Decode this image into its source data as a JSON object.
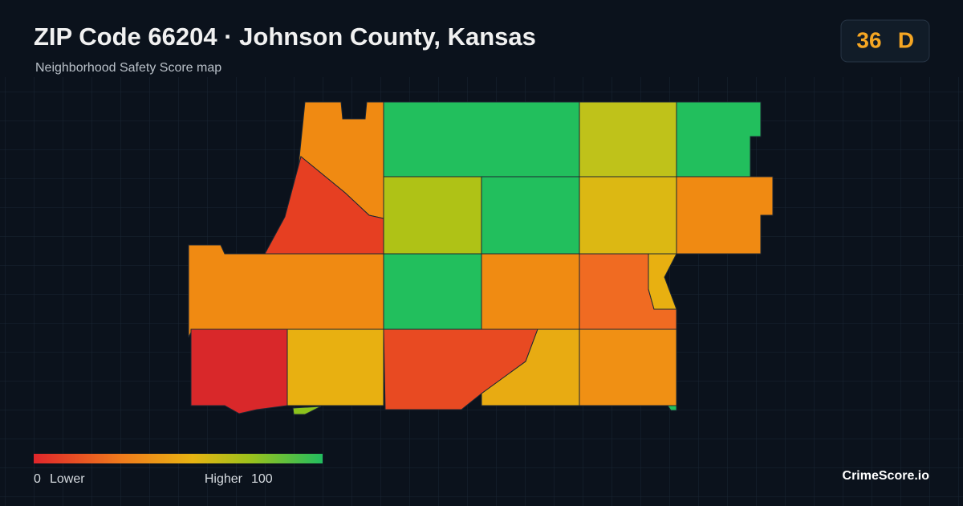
{
  "header": {
    "title": "ZIP Code 66204 · Johnson County, Kansas",
    "subtitle": "Neighborhood Safety Score map"
  },
  "score": {
    "value": 36,
    "grade": "D"
  },
  "legend": {
    "min": 0,
    "min_label": "Lower",
    "max_label": "Higher",
    "max": 100
  },
  "brand": "CrimeScore.io"
}
